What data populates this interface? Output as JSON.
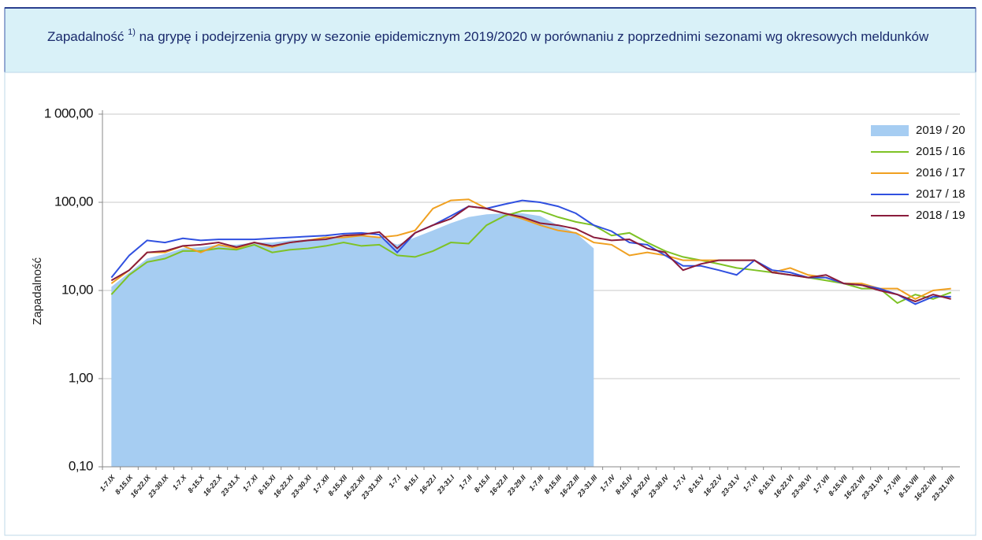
{
  "chart_data": {
    "type": "line",
    "title": "Zapadalność",
    "title_note": "1)",
    "title_rest": "na grypę i podejrzenia grypy w sezonie epidemicznym 2019/2020 w porównaniu z poprzednimi sezonami wg okresowych meldunków",
    "y_label": "Zapadalność",
    "log_scale": true,
    "grid": true,
    "legend": "top-right",
    "ylim": [
      0.1,
      1000
    ],
    "yticks": [
      {
        "value": 0.1,
        "label": "0,10"
      },
      {
        "value": 1,
        "label": "1,00"
      },
      {
        "value": 10,
        "label": "10,00"
      },
      {
        "value": 100,
        "label": "100,00"
      },
      {
        "value": 1000,
        "label": "1 000,00"
      }
    ],
    "categories": [
      "1-7.IX",
      "8-15.IX",
      "16-22.IX",
      "23-30.IX",
      "1-7.X",
      "8-15.X",
      "16-22.X",
      "23-31.X",
      "1-7.XI",
      "8-15.XI",
      "16-22.XI",
      "23-30.XI",
      "1-7.XII",
      "8-15.XII",
      "16-22.XII",
      "23-31.XII",
      "1-7.I",
      "8-15.I",
      "16-22.I",
      "23-31.I",
      "1-7.II",
      "8-15.II",
      "16-22.II",
      "23-29.II",
      "1-7.III",
      "8-15.III",
      "16-22.III",
      "23-31.III",
      "1-7.IV",
      "8-15.IV",
      "16-22.IV",
      "23-30.IV",
      "1-7.V",
      "8-15.V",
      "16-22.V",
      "23-31.V",
      "1-7.VI",
      "8-15.VI",
      "16-22.VI",
      "23-30.VI",
      "1-7.VII",
      "8-15.VII",
      "16-22.VII",
      "23-31.VII",
      "1-7.VIII",
      "8-15.VIII",
      "16-22.VIII",
      "23-31.VIII"
    ],
    "series": [
      {
        "name": "2019 / 20",
        "color": "#a6cdf2",
        "kind": "area",
        "values": [
          11,
          16,
          23,
          26,
          30,
          31,
          33,
          33,
          35,
          35,
          37,
          38,
          40,
          41,
          42,
          40,
          33,
          40,
          48,
          58,
          68,
          73,
          75,
          75,
          70,
          55,
          45,
          30,
          null,
          null,
          null,
          null,
          null,
          null,
          null,
          null,
          null,
          null,
          null,
          null,
          null,
          null,
          null,
          null,
          null,
          null,
          null,
          null
        ]
      },
      {
        "name": "2015 / 16",
        "color": "#7ec225",
        "kind": "line",
        "values": [
          9,
          15,
          21,
          23,
          28,
          28,
          30,
          29,
          33,
          27,
          29,
          30,
          32,
          35,
          32,
          33,
          25,
          24,
          28,
          35,
          34,
          55,
          70,
          80,
          80,
          68,
          60,
          55,
          42,
          45,
          35,
          28,
          24,
          22,
          20,
          18,
          17,
          16,
          15,
          14,
          13,
          12,
          10.5,
          10.5,
          7.2,
          9,
          8,
          9.5
        ]
      },
      {
        "name": "2016 / 17",
        "color": "#f0a020",
        "kind": "line",
        "values": [
          12,
          17,
          27,
          27,
          32,
          27,
          33,
          30,
          35,
          31,
          35,
          37,
          40,
          40,
          42,
          40,
          42,
          48,
          85,
          105,
          108,
          85,
          75,
          65,
          55,
          48,
          45,
          35,
          33,
          25,
          27,
          25,
          22,
          22,
          22,
          22,
          22,
          16,
          18,
          15,
          14,
          12,
          12,
          10.5,
          10.5,
          8,
          10,
          10.5
        ]
      },
      {
        "name": "2017 / 18",
        "color": "#3050e0",
        "kind": "line",
        "values": [
          14,
          25,
          37,
          35,
          39,
          37,
          38,
          38,
          38,
          39,
          40,
          41,
          42,
          44,
          45,
          43,
          27,
          45,
          55,
          70,
          90,
          85,
          95,
          105,
          100,
          90,
          75,
          55,
          47,
          35,
          33,
          25,
          19,
          19,
          17,
          15,
          22,
          17,
          16,
          14,
          14,
          12,
          11.5,
          10.5,
          9,
          7,
          8.5,
          8.5
        ]
      },
      {
        "name": "2018 / 19",
        "color": "#8a1c3c",
        "kind": "line",
        "values": [
          13,
          17,
          27,
          28,
          32,
          33,
          35,
          31,
          35,
          32,
          35,
          37,
          38,
          42,
          43,
          46,
          30,
          45,
          55,
          65,
          90,
          85,
          75,
          68,
          58,
          55,
          50,
          40,
          37,
          38,
          30,
          27,
          17,
          20,
          22,
          22,
          22,
          16,
          15,
          14,
          15,
          12,
          11.5,
          10,
          9,
          7.5,
          9,
          8
        ]
      }
    ]
  }
}
